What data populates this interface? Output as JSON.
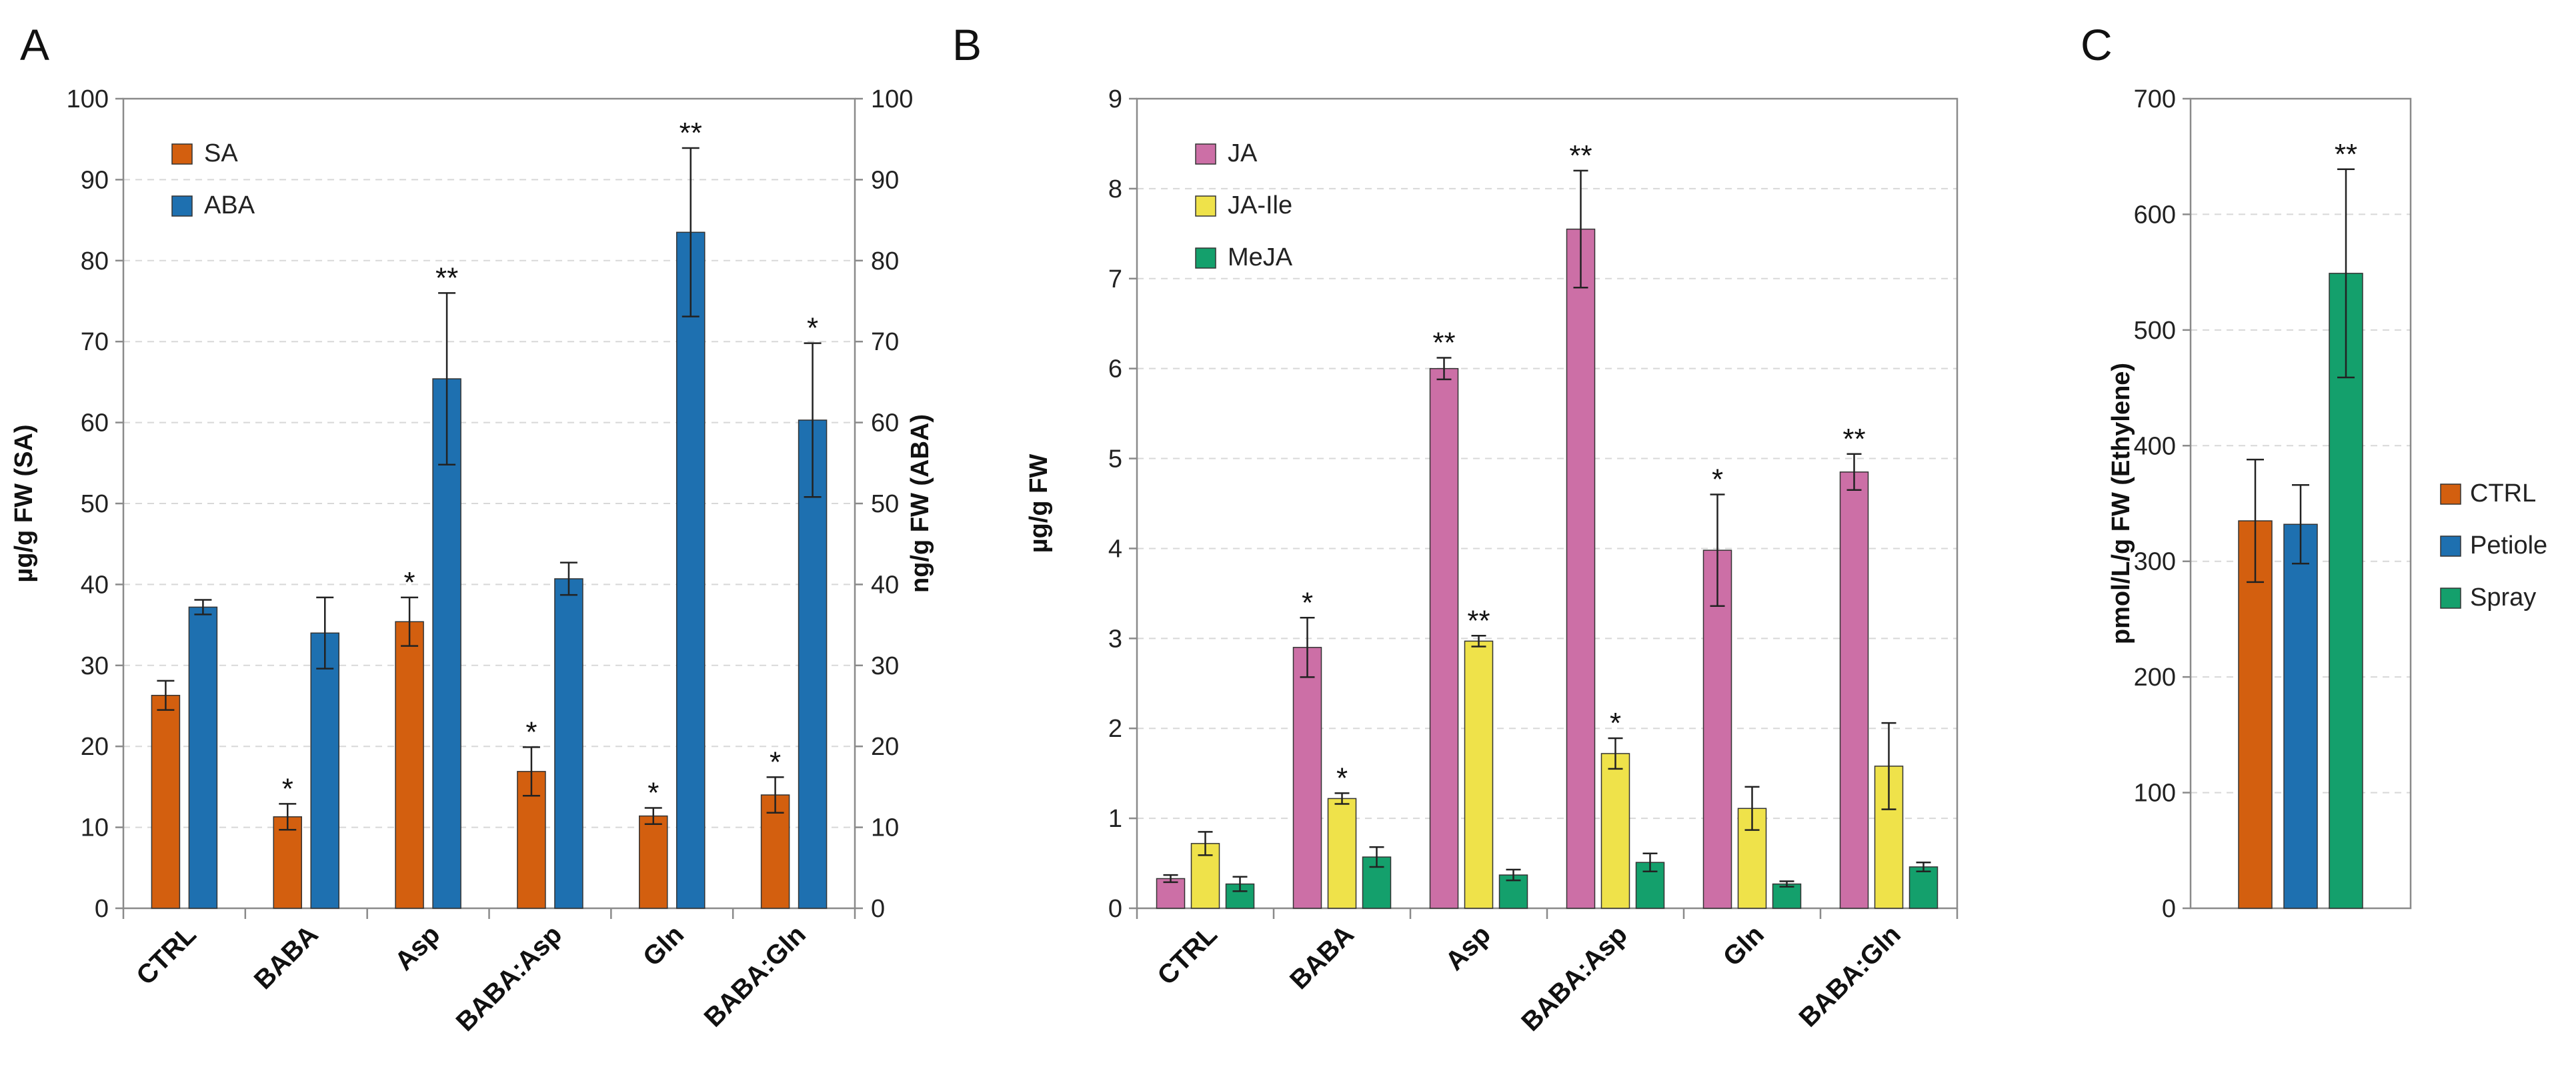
{
  "chart_data": [
    {
      "panel": "A",
      "type": "bar",
      "title": "",
      "categories": [
        "CTRL",
        "BABA",
        "Asp",
        "BABA:Asp",
        "Gln",
        "BABA:Gln"
      ],
      "ylabel": "µg/g FW (SA)",
      "ylabel_right": "ng/g FW (ABA)",
      "ylim": [
        0,
        100
      ],
      "yticks": [
        0,
        10,
        20,
        30,
        40,
        50,
        60,
        70,
        80,
        90,
        100
      ],
      "ylim_right": [
        0,
        100
      ],
      "yticks_right": [
        0,
        10,
        20,
        30,
        40,
        50,
        60,
        70,
        80,
        90,
        100
      ],
      "grid": true,
      "legend_position": "top-left",
      "series": [
        {
          "name": "SA",
          "color": "#D35F0F",
          "values": [
            26.3,
            11.3,
            35.4,
            16.9,
            11.4,
            14.0
          ],
          "errors": [
            1.8,
            1.6,
            3.0,
            3.0,
            1.0,
            2.2
          ],
          "sig": [
            "",
            "*",
            "*",
            "*",
            "*",
            "*"
          ]
        },
        {
          "name": "ABA",
          "color": "#1E70B0",
          "values": [
            37.2,
            34.0,
            65.4,
            40.7,
            83.5,
            60.3
          ],
          "errors": [
            0.9,
            4.4,
            10.6,
            2.0,
            10.4,
            9.5
          ],
          "sig": [
            "",
            "",
            "**",
            "",
            "**",
            "*"
          ]
        }
      ]
    },
    {
      "panel": "B",
      "type": "bar",
      "title": "",
      "categories": [
        "CTRL",
        "BABA",
        "Asp",
        "BABA:Asp",
        "Gln",
        "BABA:Gln"
      ],
      "ylabel": "µg/g FW",
      "ylim": [
        0,
        9
      ],
      "yticks": [
        0,
        1,
        2,
        3,
        4,
        5,
        6,
        7,
        8,
        9
      ],
      "grid": true,
      "legend_position": "top-left",
      "series": [
        {
          "name": "JA",
          "color": "#CC6FA6",
          "values": [
            0.33,
            2.9,
            6.0,
            7.55,
            3.98,
            4.85
          ],
          "errors": [
            0.04,
            0.33,
            0.12,
            0.65,
            0.62,
            0.2
          ],
          "sig": [
            "",
            "*",
            "**",
            "**",
            "*",
            "**"
          ]
        },
        {
          "name": "JA-Ile",
          "color": "#EFE24A",
          "values": [
            0.72,
            1.22,
            2.97,
            1.72,
            1.11,
            1.58
          ],
          "errors": [
            0.13,
            0.06,
            0.06,
            0.17,
            0.24,
            0.48
          ],
          "sig": [
            "",
            "*",
            "**",
            "*",
            "",
            ""
          ]
        },
        {
          "name": "MeJA",
          "color": "#14A06C",
          "values": [
            0.27,
            0.57,
            0.37,
            0.51,
            0.27,
            0.46
          ],
          "errors": [
            0.08,
            0.11,
            0.06,
            0.1,
            0.03,
            0.05
          ],
          "sig": [
            "",
            "",
            "",
            "",
            "",
            ""
          ]
        }
      ]
    },
    {
      "panel": "C",
      "type": "bar",
      "title": "",
      "categories": [
        "CTRL",
        "Petiole",
        "Spray"
      ],
      "ylabel": "pmol/L/g FW (Ethylene)",
      "ylim": [
        0,
        700
      ],
      "yticks": [
        0,
        100,
        200,
        300,
        400,
        500,
        600,
        700
      ],
      "grid": true,
      "legend_position": "right",
      "series": [
        {
          "name": "Ethylene",
          "colors": [
            "#D35F0F",
            "#1E70B0",
            "#14A06C"
          ],
          "values": [
            335,
            332,
            549
          ],
          "errors": [
            53,
            34,
            90
          ],
          "sig": [
            "",
            "",
            "**"
          ]
        }
      ]
    }
  ]
}
